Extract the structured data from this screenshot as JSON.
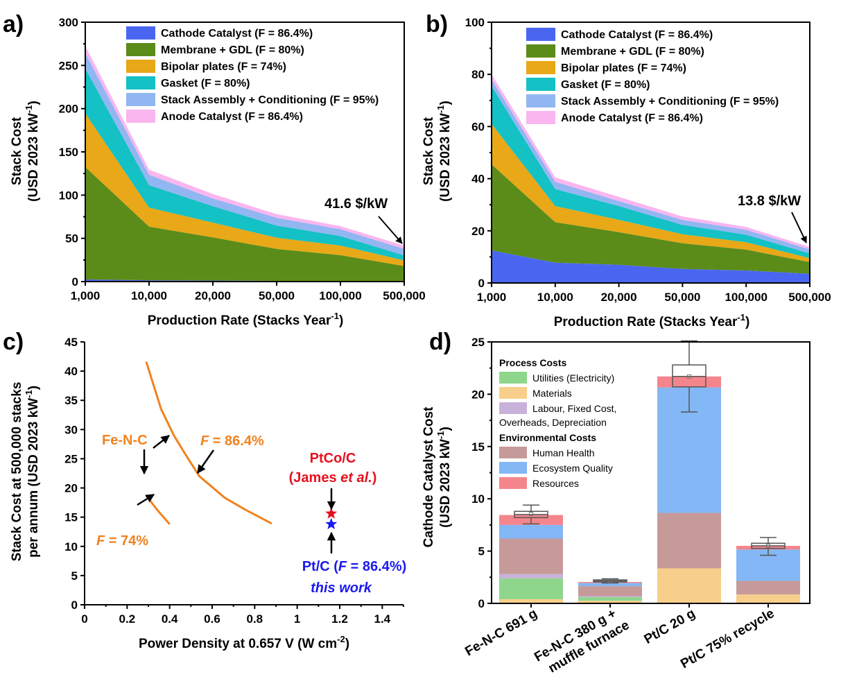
{
  "chart_data": [
    {
      "panel_label": "a)",
      "type": "area",
      "stacked": true,
      "x": [
        "1,000",
        "10,000",
        "20,000",
        "50,000",
        "100,000",
        "500,000"
      ],
      "xlabel": "Production Rate (Stacks Year",
      "xlabel_sup": "-1",
      "xlabel_tail": ")",
      "ylabel_line1": "Stack Cost",
      "ylabel_line2": "(USD 2023 kW",
      "ylabel_sup": "-1",
      "ylabel_tail": ")",
      "ylim": [
        0,
        300
      ],
      "yticks": [
        0,
        50,
        100,
        150,
        200,
        250,
        300
      ],
      "legend_position": "top-right",
      "series": [
        {
          "name": "Cathode Catalyst (F = 86.4%)",
          "color": "#4a66f0",
          "values": [
            2.5,
            1.5,
            1.2,
            0.8,
            0.6,
            0.3
          ]
        },
        {
          "name": "Membrane + GDL (F = 80%)",
          "color": "#5b8c1a",
          "values": [
            130,
            62,
            50,
            37,
            30,
            17.7
          ]
        },
        {
          "name": "Bipolar plates (F = 74%)",
          "color": "#e8a817",
          "values": [
            62,
            22,
            17,
            13,
            11,
            6.5
          ]
        },
        {
          "name": "Gasket (F = 80%)",
          "color": "#14c1c4",
          "values": [
            52,
            26,
            19,
            14,
            11,
            5.8
          ]
        },
        {
          "name": "Stack Assembly + Conditioning (F = 95%)",
          "color": "#92b6f2",
          "values": [
            18,
            12,
            9,
            9,
            8,
            7.5
          ]
        },
        {
          "name": "Anode Catalyst (F = 86.4%)",
          "color": "#f9b6ef",
          "values": [
            8,
            6,
            5,
            4.2,
            3.5,
            3.8
          ]
        }
      ],
      "annotation": "41.6 $/kW"
    },
    {
      "panel_label": "b)",
      "type": "area",
      "stacked": true,
      "x": [
        "1,000",
        "10,000",
        "20,000",
        "50,000",
        "100,000",
        "500,000"
      ],
      "xlabel": "Production Rate (Stacks Year",
      "xlabel_sup": "-1",
      "xlabel_tail": ")",
      "ylabel_line1": "Stack Cost",
      "ylabel_line2": "(USD 2023 kW",
      "ylabel_sup": "-1",
      "ylabel_tail": ")",
      "ylim": [
        0,
        100
      ],
      "yticks": [
        0,
        20,
        40,
        60,
        80,
        100
      ],
      "legend_position": "top-right",
      "series": [
        {
          "name": "Cathode Catalyst (F = 86.4%)",
          "color": "#4a66f0",
          "values": [
            12.5,
            7.8,
            7,
            5.4,
            4.8,
            3.5
          ]
        },
        {
          "name": "Membrane + GDL (F = 80%)",
          "color": "#5b8c1a",
          "values": [
            33,
            15.5,
            12.5,
            9.8,
            8,
            4.5
          ]
        },
        {
          "name": "Bipolar plates (F = 74%)",
          "color": "#e8a817",
          "values": [
            15.5,
            6.2,
            4.7,
            3.5,
            2.8,
            1.5
          ]
        },
        {
          "name": "Gasket (F = 80%)",
          "color": "#14c1c4",
          "values": [
            14.5,
            6.5,
            5.3,
            3.6,
            2.9,
            1.8
          ]
        },
        {
          "name": "Stack Assembly + Conditioning (F = 95%)",
          "color": "#92b6f2",
          "values": [
            2.5,
            2.8,
            1.9,
            1.9,
            1.9,
            1.6
          ]
        },
        {
          "name": "Anode Catalyst (F = 86.4%)",
          "color": "#f9b6ef",
          "values": [
            2,
            1.7,
            1.6,
            1.3,
            1.1,
            0.9
          ]
        }
      ],
      "annotation": "13.8 $/kW"
    },
    {
      "panel_label": "c)",
      "type": "line",
      "xlabel": "Power Density at 0.657 V (W cm",
      "xlabel_sup": "-2",
      "xlabel_tail": ")",
      "ylabel_line1": "Stack Cost at 500,000 stacks",
      "ylabel_line2": "per annum (USD 2023 kW",
      "ylabel_sup": "-1",
      "ylabel_tail": ")",
      "xlim": [
        0,
        1.5
      ],
      "xticks": [
        "0",
        "0.2",
        "0.4",
        "0.6",
        "0.8",
        "1",
        "1.2",
        "1.4"
      ],
      "xtick_values": [
        0,
        0.2,
        0.4,
        0.6,
        0.8,
        1,
        1.2,
        1.4
      ],
      "ylim": [
        0,
        45
      ],
      "yticks": [
        0,
        5,
        10,
        15,
        20,
        25,
        30,
        35,
        40,
        45
      ],
      "line_color": "#f0821e",
      "series": [
        {
          "x": [
            0.29,
            0.36,
            0.42,
            0.47,
            0.54,
            0.66,
            0.76,
            0.88
          ],
          "y": [
            41.6,
            33.5,
            29,
            26,
            22,
            18.3,
            16.2,
            13.9
          ]
        },
        {
          "x": [
            0.29,
            0.34,
            0.4
          ],
          "y": [
            18.7,
            16.3,
            13.8
          ]
        }
      ],
      "points": [
        {
          "x": 1.16,
          "y": 15.6,
          "color": "#e8101e"
        },
        {
          "x": 1.16,
          "y": 13.8,
          "color": "#1a1af0"
        }
      ],
      "annotations": {
        "fenc": "Fe-N-C",
        "f_sym": "F",
        "f864_rest": " = 86.4%",
        "f74_rest": " = 74%",
        "ptco_line1": "PtCo/C",
        "ptco_line2_a": "(James ",
        "ptco_line2_b": "et al.",
        "ptco_line2_c": ")",
        "ptc_a": "Pt/C (",
        "ptc_c": " = 86.4%)",
        "this_work": "this work"
      }
    },
    {
      "panel_label": "d)",
      "type": "bar",
      "stacked": true,
      "categories": [
        "Fe-N-C 691 g",
        "Fe-N-C 380 g +",
        "Pt/C 20 g",
        "Pt/C 75% recycle"
      ],
      "category_line2": [
        "",
        "muffle furnace",
        "",
        ""
      ],
      "ylabel_line1": "Cathode Catalyst Cost",
      "ylabel_line2": "(USD 2023 kW",
      "ylabel_sup": "-1",
      "ylabel_tail": ")",
      "ylim": [
        0,
        25
      ],
      "yticks": [
        0,
        5,
        10,
        15,
        20,
        25
      ],
      "legend_position": "top-left",
      "legend_groups": [
        {
          "title": "Process Costs",
          "items": [
            0,
            1,
            2
          ]
        },
        {
          "title": "Environmental Costs",
          "items": [
            3,
            4,
            5
          ]
        }
      ],
      "series": [
        {
          "name": "Materials",
          "color": "#f7cf8a",
          "values": [
            0.4,
            0.25,
            3.35,
            0.85
          ]
        },
        {
          "name": "Utilities (Electricity)",
          "color": "#8fd68d",
          "values": [
            2.0,
            0.35,
            0,
            0
          ]
        },
        {
          "name": "Labour, Fixed Cost, Overheads, Depreciation",
          "color": "#c8b2da",
          "values": [
            0.4,
            0.1,
            0,
            0
          ]
        },
        {
          "name": "Human Health",
          "color": "#c79a9a",
          "values": [
            3.4,
            0.95,
            5.3,
            1.3
          ]
        },
        {
          "name": "Ecosystem Quality",
          "color": "#83b7f5",
          "values": [
            1.3,
            0.3,
            12,
            3.0
          ]
        },
        {
          "name": "Resources",
          "color": "#f4858c",
          "values": [
            0.95,
            0.1,
            1.05,
            0.35
          ]
        }
      ],
      "legend_order": [
        1,
        0,
        2,
        3,
        4,
        5
      ],
      "legend_labels": [
        "Utilities (Electricity)",
        "Materials",
        "Labour, Fixed Cost,",
        "Overheads, Depreciation",
        "Human Health",
        "Ecosystem Quality",
        "Resources"
      ],
      "boxes": [
        {
          "median": 8.5,
          "mean": 8.55,
          "q1": 8.2,
          "q3": 8.8,
          "min": 7.6,
          "max": 9.4
        },
        {
          "median": 2.15,
          "mean": 2.15,
          "q1": 2.05,
          "q3": 2.25,
          "min": 1.95,
          "max": 2.35
        },
        {
          "median": 21.7,
          "mean": 21.7,
          "q1": 20.7,
          "q3": 22.8,
          "min": 18.3,
          "max": 25.1
        },
        {
          "median": 5.5,
          "mean": 5.5,
          "q1": 5.25,
          "q3": 5.75,
          "min": 4.6,
          "max": 6.3
        }
      ]
    }
  ]
}
